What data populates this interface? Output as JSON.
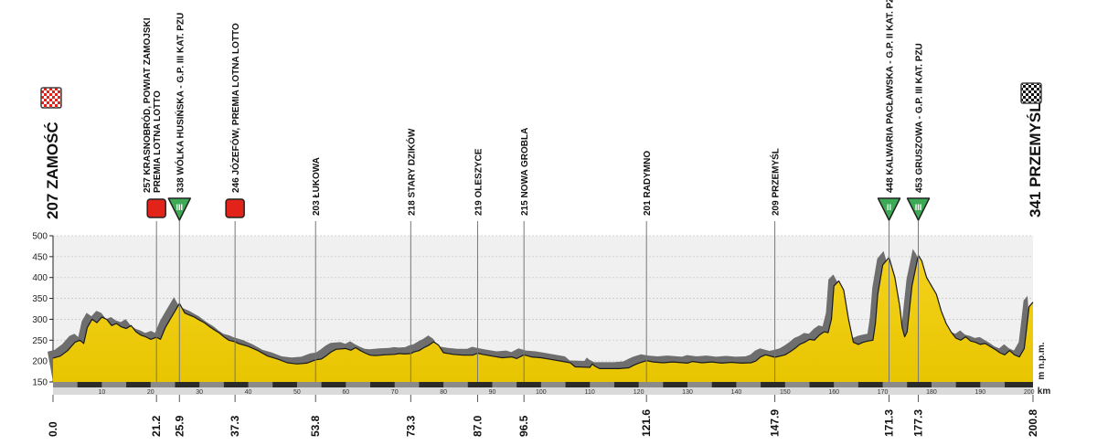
{
  "chart_data": {
    "type": "area",
    "title": "",
    "xlabel": "km",
    "ylabel": "m n.p.m.",
    "xlim": [
      0,
      200.8
    ],
    "ylim": [
      150,
      500
    ],
    "y_ticks": [
      150,
      200,
      250,
      300,
      350,
      400,
      450,
      500
    ],
    "x_ticks_minor": [
      10,
      20,
      30,
      40,
      50,
      60,
      70,
      80,
      90,
      100,
      110,
      120,
      130,
      140,
      150,
      160,
      170,
      180,
      190,
      200
    ],
    "x_ticks_major": [
      {
        "value": 0,
        "label": "0.0"
      },
      {
        "value": 21.2,
        "label": "21.2"
      },
      {
        "value": 25.9,
        "label": "25.9"
      },
      {
        "value": 37.3,
        "label": "37.3"
      },
      {
        "value": 53.8,
        "label": "53.8"
      },
      {
        "value": 73.3,
        "label": "73.3"
      },
      {
        "value": 87.0,
        "label": "87.0"
      },
      {
        "value": 96.5,
        "label": "96.5"
      },
      {
        "value": 121.6,
        "label": "121.6"
      },
      {
        "value": 147.9,
        "label": "147.9"
      },
      {
        "value": 171.3,
        "label": "171.3"
      },
      {
        "value": 177.3,
        "label": "177.3"
      },
      {
        "value": 200.8,
        "label": "200.8"
      }
    ],
    "start": {
      "km": 0,
      "label": "207 ZAMOŚĆ"
    },
    "finish": {
      "km": 200.8,
      "label": "341 PRZEMYŚL"
    },
    "waypoints": [
      {
        "km": 21.2,
        "label": "257 KRASNOBRÓD, POWIAT ZAMOJSKI\nPREMIA LOTNA LOTTO",
        "marker": "sprint"
      },
      {
        "km": 25.9,
        "label": "338 WÓLKA HUSIŃSKA - G.P. III KAT. PZU",
        "marker": "climb",
        "category": "III"
      },
      {
        "km": 37.3,
        "label": "246 JÓZEFÓW, PREMIA LOTNA LOTTO",
        "marker": "sprint"
      },
      {
        "km": 53.8,
        "label": "203 ŁUKOWA",
        "marker": "none"
      },
      {
        "km": 73.3,
        "label": "218 STARY DZIKÓW",
        "marker": "none"
      },
      {
        "km": 87.0,
        "label": "219 OLESZYCE",
        "marker": "none"
      },
      {
        "km": 96.5,
        "label": "215 NOWA GROBLA",
        "marker": "none"
      },
      {
        "km": 121.6,
        "label": "201 RADYMNO",
        "marker": "none"
      },
      {
        "km": 147.9,
        "label": "209 PRZEMYŚL",
        "marker": "none"
      },
      {
        "km": 171.3,
        "label": "448 KALWARIA PACŁAWSKA - G.P. II KAT. PZU",
        "marker": "climb",
        "category": "II"
      },
      {
        "km": 177.3,
        "label": "453 GRUSZOWA - G.P. III KAT. PZU",
        "marker": "climb",
        "category": "III"
      }
    ],
    "elevation": [
      [
        0,
        207
      ],
      [
        1.5,
        212
      ],
      [
        3,
        225
      ],
      [
        4.5,
        245
      ],
      [
        5.5,
        250
      ],
      [
        6.3,
        242
      ],
      [
        7,
        280
      ],
      [
        8,
        300
      ],
      [
        9,
        292
      ],
      [
        10,
        305
      ],
      [
        11,
        300
      ],
      [
        12,
        285
      ],
      [
        13,
        290
      ],
      [
        14,
        282
      ],
      [
        15,
        278
      ],
      [
        16,
        285
      ],
      [
        17,
        270
      ],
      [
        18,
        262
      ],
      [
        19,
        258
      ],
      [
        20,
        252
      ],
      [
        21.2,
        257
      ],
      [
        22,
        252
      ],
      [
        23,
        280
      ],
      [
        24,
        300
      ],
      [
        25,
        320
      ],
      [
        25.9,
        338
      ],
      [
        27,
        315
      ],
      [
        28,
        310
      ],
      [
        29,
        305
      ],
      [
        30,
        298
      ],
      [
        31,
        292
      ],
      [
        32,
        283
      ],
      [
        33,
        275
      ],
      [
        34,
        268
      ],
      [
        35,
        258
      ],
      [
        36,
        250
      ],
      [
        37.3,
        246
      ],
      [
        38,
        242
      ],
      [
        40,
        235
      ],
      [
        42,
        225
      ],
      [
        44,
        212
      ],
      [
        46,
        205
      ],
      [
        48,
        196
      ],
      [
        50,
        193
      ],
      [
        52,
        195
      ],
      [
        53.8,
        203
      ],
      [
        55,
        205
      ],
      [
        56,
        213
      ],
      [
        57,
        222
      ],
      [
        58,
        228
      ],
      [
        60,
        230
      ],
      [
        61,
        226
      ],
      [
        62,
        232
      ],
      [
        63,
        225
      ],
      [
        64,
        219
      ],
      [
        65,
        214
      ],
      [
        66,
        213
      ],
      [
        68,
        215
      ],
      [
        70,
        216
      ],
      [
        71,
        218
      ],
      [
        72,
        217
      ],
      [
        73.3,
        218
      ],
      [
        74,
        222
      ],
      [
        75,
        225
      ],
      [
        76,
        232
      ],
      [
        77,
        238
      ],
      [
        78,
        246
      ],
      [
        79,
        238
      ],
      [
        80,
        220
      ],
      [
        82,
        216
      ],
      [
        84,
        214
      ],
      [
        86,
        214
      ],
      [
        87,
        219
      ],
      [
        88,
        216
      ],
      [
        90,
        212
      ],
      [
        92,
        208
      ],
      [
        94,
        210
      ],
      [
        95,
        206
      ],
      [
        96.5,
        215
      ],
      [
        98,
        210
      ],
      [
        100,
        208
      ],
      [
        102,
        204
      ],
      [
        104,
        200
      ],
      [
        106,
        196
      ],
      [
        107,
        186
      ],
      [
        110,
        185
      ],
      [
        110.5,
        193
      ],
      [
        111,
        188
      ],
      [
        112,
        182
      ],
      [
        116,
        182
      ],
      [
        118,
        184
      ],
      [
        119,
        190
      ],
      [
        120,
        195
      ],
      [
        121.6,
        201
      ],
      [
        123,
        198
      ],
      [
        125,
        196
      ],
      [
        127,
        198
      ],
      [
        130,
        195
      ],
      [
        131,
        199
      ],
      [
        133,
        196
      ],
      [
        135,
        198
      ],
      [
        137,
        195
      ],
      [
        139,
        197
      ],
      [
        141,
        195
      ],
      [
        143,
        196
      ],
      [
        144,
        200
      ],
      [
        145,
        210
      ],
      [
        146,
        215
      ],
      [
        147,
        212
      ],
      [
        147.9,
        209
      ],
      [
        149,
        212
      ],
      [
        150,
        215
      ],
      [
        151,
        222
      ],
      [
        152,
        230
      ],
      [
        153,
        240
      ],
      [
        154,
        245
      ],
      [
        155,
        252
      ],
      [
        156,
        250
      ],
      [
        157,
        262
      ],
      [
        158,
        270
      ],
      [
        158.8,
        268
      ],
      [
        159.5,
        300
      ],
      [
        160,
        380
      ],
      [
        161,
        392
      ],
      [
        162,
        370
      ],
      [
        163,
        300
      ],
      [
        164,
        245
      ],
      [
        165,
        240
      ],
      [
        166,
        245
      ],
      [
        167,
        248
      ],
      [
        168,
        250
      ],
      [
        168.5,
        290
      ],
      [
        169,
        360
      ],
      [
        170,
        430
      ],
      [
        171.3,
        448
      ],
      [
        172.5,
        400
      ],
      [
        173.5,
        330
      ],
      [
        174,
        280
      ],
      [
        174.5,
        258
      ],
      [
        175,
        270
      ],
      [
        176,
        380
      ],
      [
        177.3,
        453
      ],
      [
        178,
        440
      ],
      [
        179,
        400
      ],
      [
        180,
        380
      ],
      [
        181,
        360
      ],
      [
        182,
        320
      ],
      [
        183,
        290
      ],
      [
        184,
        270
      ],
      [
        185,
        255
      ],
      [
        186,
        250
      ],
      [
        187,
        258
      ],
      [
        188,
        248
      ],
      [
        189,
        245
      ],
      [
        190,
        240
      ],
      [
        191,
        242
      ],
      [
        192,
        235
      ],
      [
        193,
        228
      ],
      [
        194,
        220
      ],
      [
        195,
        215
      ],
      [
        196,
        225
      ],
      [
        197,
        215
      ],
      [
        198,
        210
      ],
      [
        199,
        230
      ],
      [
        199.5,
        280
      ],
      [
        200,
        330
      ],
      [
        200.8,
        341
      ]
    ]
  },
  "colors": {
    "fill_top": "#f3d21d",
    "fill_bottom": "#e8c500",
    "shadow": "#6e6e6e",
    "outline": "#1a1a1a",
    "plot_bg": "#f0f0f0",
    "sprint": "#e2231a",
    "climb": "#3daa55",
    "base": "#2b2b2b"
  }
}
